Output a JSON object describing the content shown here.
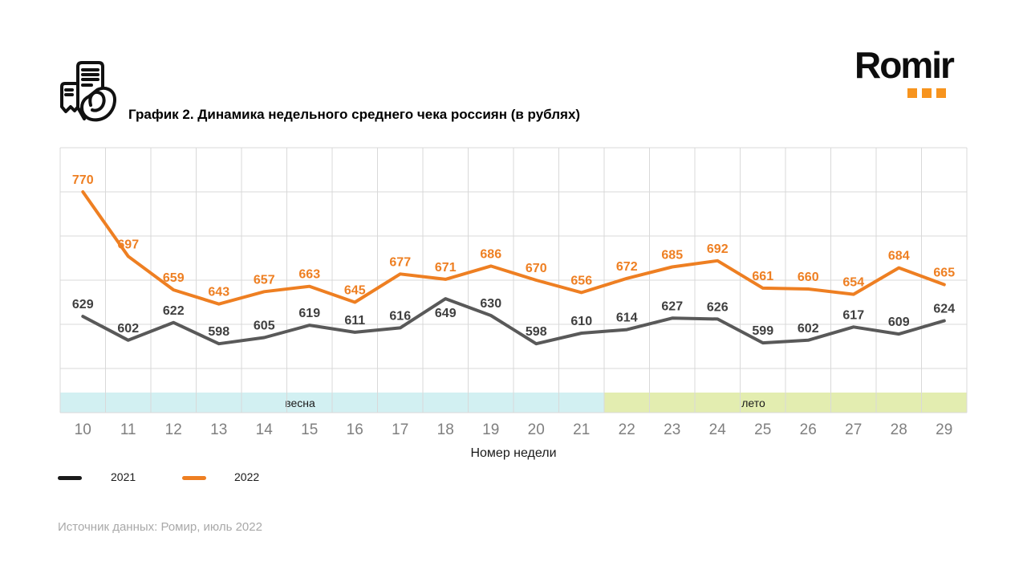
{
  "header": {
    "title": "График 2. Динамика недельного среднего чека россиян (в рублях)"
  },
  "logo": {
    "text": "Romir",
    "dot_color": "#F7941E"
  },
  "icons": {
    "top_left": "receipt-in-hand-icon"
  },
  "chart_data": {
    "type": "line",
    "title": "График 2. Динамика недельного среднего чека россиян (в рублях)",
    "xlabel": "Номер недели",
    "ylabel": "",
    "x": [
      10,
      11,
      12,
      13,
      14,
      15,
      16,
      17,
      18,
      19,
      20,
      21,
      22,
      23,
      24,
      25,
      26,
      27,
      28,
      29
    ],
    "series": [
      {
        "name": "2021",
        "color": "#595959",
        "label_color": "#3f3f3f",
        "values": [
          629,
          602,
          622,
          598,
          605,
          619,
          611,
          616,
          649,
          630,
          598,
          610,
          614,
          627,
          626,
          599,
          602,
          617,
          609,
          624
        ]
      },
      {
        "name": "2022",
        "color": "#EE7F22",
        "label_color": "#EE7F22",
        "values": [
          770,
          697,
          659,
          643,
          657,
          663,
          645,
          677,
          671,
          686,
          670,
          656,
          672,
          685,
          692,
          661,
          660,
          654,
          684,
          665
        ]
      }
    ],
    "ylim": [
      520,
      820
    ],
    "grid": true,
    "gridline_color": "#D9D9D9",
    "tick_color": "#7f7f7f",
    "legend_position": "bottom-left",
    "season_bands": [
      {
        "label": "весна",
        "weeks": [
          10,
          21
        ],
        "color": "#D2F0F2"
      },
      {
        "label": "лето",
        "weeks": [
          22,
          29
        ],
        "color": "#E3EDB0"
      }
    ]
  },
  "legend": {
    "items": [
      {
        "label": "2021",
        "color": "#1a1a1a"
      },
      {
        "label": "2022",
        "color": "#EE7F22"
      }
    ]
  },
  "footer": {
    "source": "Источник данных: Ромир, июль 2022"
  }
}
